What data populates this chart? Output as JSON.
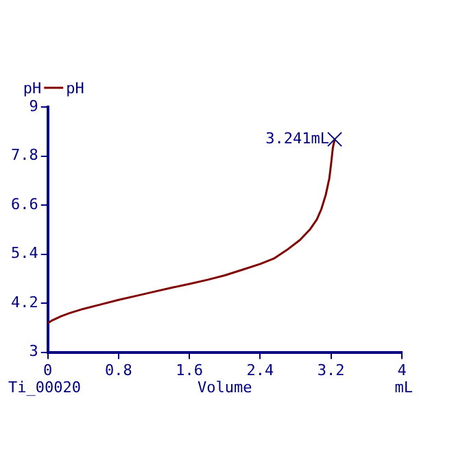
{
  "chart_data": {
    "type": "line",
    "xlabel": "Volume",
    "ylabel": "pH",
    "x": [
      0,
      0.05,
      0.15,
      0.25,
      0.4,
      0.6,
      0.8,
      1.0,
      1.2,
      1.4,
      1.6,
      1.8,
      2.0,
      2.2,
      2.4,
      2.56,
      2.7,
      2.85,
      2.96,
      3.04,
      3.09,
      3.14,
      3.18,
      3.2,
      3.22,
      3.241
    ],
    "series": [
      {
        "name": "pH",
        "color": "#800000",
        "values": [
          3.71,
          3.78,
          3.88,
          3.96,
          4.06,
          4.17,
          4.28,
          4.38,
          4.48,
          4.58,
          4.67,
          4.77,
          4.88,
          5.02,
          5.16,
          5.3,
          5.5,
          5.75,
          6.0,
          6.25,
          6.5,
          6.85,
          7.25,
          7.6,
          8.0,
          8.21
        ]
      }
    ],
    "xlim": [
      0,
      4
    ],
    "xticks": [
      0,
      0.8,
      1.6,
      2.4,
      3.2,
      4
    ],
    "ylim": [
      3,
      9
    ],
    "yticks": [
      3,
      4.2,
      5.4,
      6.6,
      7.8,
      9
    ],
    "grid": false,
    "legend": "top left",
    "marker": "none",
    "line_style": "solid",
    "annotations": [
      {
        "text": "3.241mL",
        "x": 3.241,
        "y": 8.21
      },
      "Ti_00020",
      "mL"
    ]
  }
}
